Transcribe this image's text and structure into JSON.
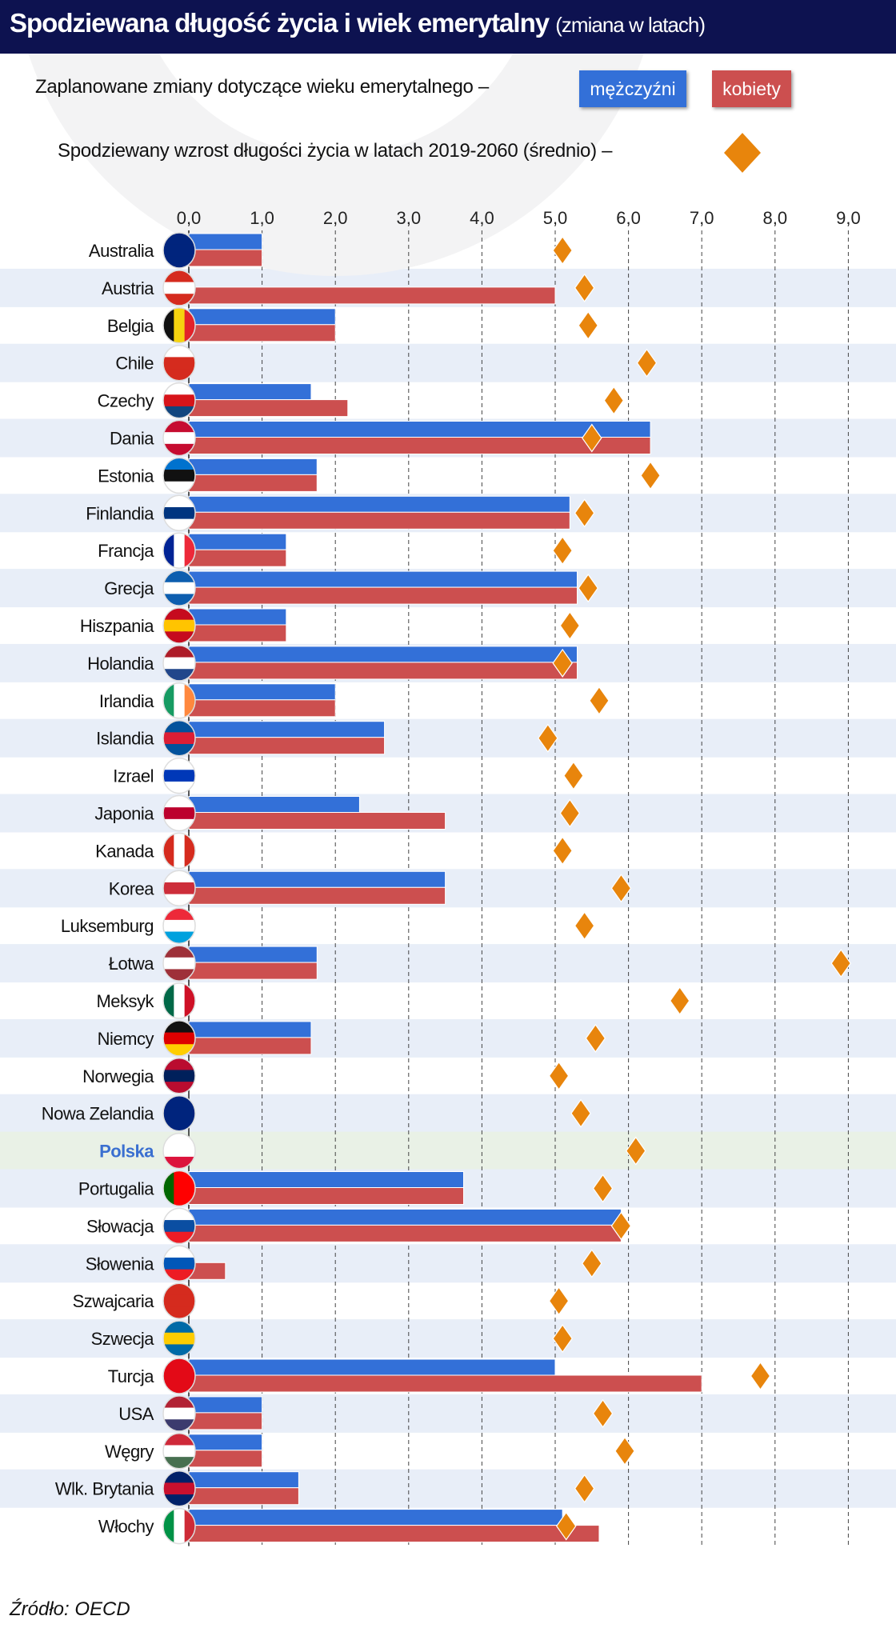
{
  "header": {
    "title": "Spodziewana długość życia i wiek emerytalny",
    "subtitle": "(zmiana w latach)"
  },
  "legend": {
    "retirement_label": "Zaplanowane zmiany dotyczące wieku emerytalnego –",
    "men": "mężczyźni",
    "women": "kobiety",
    "life_label": "Spodziewany wzrost długości życia w latach 2019-2060 (średnio) –"
  },
  "source": "Źródło: OECD",
  "colors": {
    "men": "#3370d8",
    "women": "#cc4f4f",
    "diamond": "#e8850c",
    "band": "#e8eef8",
    "highlight": "#e9f1e6",
    "polska": "#3a6fd0"
  },
  "chart_data": {
    "type": "bar",
    "title": "Spodziewana długość życia i wiek emerytalny (zmiana w latach)",
    "xlim": [
      0,
      9
    ],
    "xticks": [
      "0,0",
      "1,0",
      "2,0",
      "3,0",
      "4,0",
      "5,0",
      "6,0",
      "7,0",
      "8,0",
      "9,0"
    ],
    "categories": [
      "Australia",
      "Austria",
      "Belgia",
      "Chile",
      "Czechy",
      "Dania",
      "Estonia",
      "Finlandia",
      "Francja",
      "Grecja",
      "Hiszpania",
      "Holandia",
      "Irlandia",
      "Islandia",
      "Izrael",
      "Japonia",
      "Kanada",
      "Korea",
      "Luksemburg",
      "Łotwa",
      "Meksyk",
      "Niemcy",
      "Norwegia",
      "Nowa Zelandia",
      "Polska",
      "Portugalia",
      "Słowacja",
      "Słowenia",
      "Szwajcaria",
      "Szwecja",
      "Turcja",
      "USA",
      "Węgry",
      "Wlk. Brytania",
      "Włochy"
    ],
    "highlight": "Polska",
    "series": [
      {
        "name": "mężczyźni",
        "values": [
          1,
          0,
          2,
          0,
          1.67,
          6.3,
          1.75,
          5.2,
          1.33,
          5.3,
          1.33,
          5.3,
          2,
          2.67,
          0,
          2.33,
          0,
          3.5,
          0,
          1.75,
          0,
          1.67,
          0,
          0,
          0,
          3.75,
          5.9,
          0,
          0,
          0,
          5,
          1,
          1,
          1.5,
          5.1
        ]
      },
      {
        "name": "kobiety",
        "values": [
          1,
          5,
          2,
          0,
          2.17,
          6.3,
          1.75,
          5.2,
          1.33,
          5.3,
          1.33,
          5.3,
          2,
          2.67,
          0,
          3.5,
          0,
          3.5,
          0,
          1.75,
          0,
          1.67,
          0,
          0,
          0,
          3.75,
          5.9,
          0.5,
          0,
          0,
          7,
          1,
          1,
          1.5,
          5.6
        ]
      },
      {
        "name": "Spodziewany wzrost długości życia 2019-2060",
        "values": [
          5.1,
          5.4,
          5.45,
          6.25,
          5.8,
          5.5,
          6.3,
          5.4,
          5.1,
          5.45,
          5.2,
          5.1,
          5.6,
          4.9,
          5.25,
          5.2,
          5.1,
          5.9,
          5.4,
          8.9,
          6.7,
          5.55,
          5.05,
          5.35,
          6.1,
          5.65,
          5.9,
          5.5,
          5.05,
          5.1,
          7.8,
          5.65,
          5.95,
          5.4,
          5.15
        ]
      }
    ]
  },
  "flags": [
    [
      "#00247d",
      "#00247d",
      "#00247d"
    ],
    [
      "#d52b1e",
      "#ffffff",
      "#d52b1e"
    ],
    [
      "v",
      "#111111",
      "#f6d30f",
      "#e2232a"
    ],
    [
      "#ffffff",
      "#d52b1e",
      "#d52b1e"
    ],
    [
      "#ffffff",
      "#d7141a",
      "#11457e"
    ],
    [
      "#c60c30",
      "#ffffff",
      "#c60c30"
    ],
    [
      "#0072ce",
      "#111111",
      "#ffffff"
    ],
    [
      "#ffffff",
      "#003580",
      "#ffffff"
    ],
    [
      "v",
      "#002395",
      "#ffffff",
      "#ed2939"
    ],
    [
      "#0d5eaf",
      "#ffffff",
      "#0d5eaf"
    ],
    [
      "#c60b1e",
      "#ffc400",
      "#c60b1e"
    ],
    [
      "#ae1c28",
      "#ffffff",
      "#21468b"
    ],
    [
      "v",
      "#169b62",
      "#ffffff",
      "#ff883e"
    ],
    [
      "#02529c",
      "#dc1e35",
      "#02529c"
    ],
    [
      "#ffffff",
      "#0038b8",
      "#ffffff"
    ],
    [
      "#ffffff",
      "#bc002d",
      "#ffffff"
    ],
    [
      "v",
      "#d52b1e",
      "#ffffff",
      "#d52b1e"
    ],
    [
      "#ffffff",
      "#cd2e3a",
      "#ffffff"
    ],
    [
      "#ed2939",
      "#ffffff",
      "#00a1de"
    ],
    [
      "#9e3039",
      "#ffffff",
      "#9e3039"
    ],
    [
      "v",
      "#006847",
      "#ffffff",
      "#ce1126"
    ],
    [
      "#111111",
      "#dd0000",
      "#ffce00"
    ],
    [
      "#ba0c2f",
      "#00205b",
      "#ba0c2f"
    ],
    [
      "#00247d",
      "#00247d",
      "#00247d"
    ],
    [
      "#ffffff",
      "#ffffff",
      "#dc143c"
    ],
    [
      "v",
      "#006600",
      "#ff0000",
      "#ff0000"
    ],
    [
      "#ffffff",
      "#0b4ea2",
      "#ee1c25"
    ],
    [
      "#ffffff",
      "#0057b8",
      "#ed1c24"
    ],
    [
      "#d52b1e",
      "#d52b1e",
      "#d52b1e"
    ],
    [
      "#006aa7",
      "#fecc00",
      "#006aa7"
    ],
    [
      "#e30a17",
      "#e30a17",
      "#e30a17"
    ],
    [
      "#b22234",
      "#ffffff",
      "#3c3b6e"
    ],
    [
      "#ce2939",
      "#ffffff",
      "#477050"
    ],
    [
      "#012169",
      "#c8102e",
      "#012169"
    ],
    [
      "v",
      "#009246",
      "#ffffff",
      "#ce2b37"
    ]
  ]
}
